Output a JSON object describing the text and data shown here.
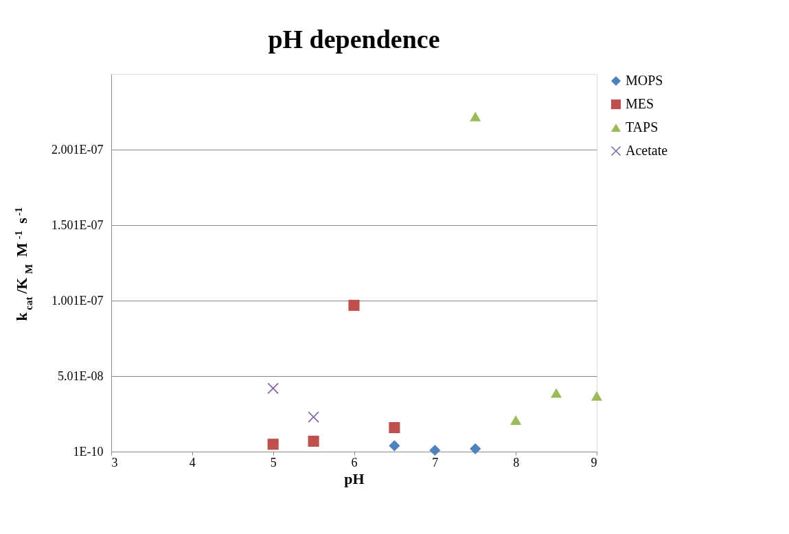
{
  "chart_data": {
    "type": "scatter",
    "title": "pH dependence",
    "xlabel": "pH",
    "ylabel": "k$_{cat}$/K$_{M}$ M$^{-1}$ s$^{-1}$",
    "xlim": [
      3,
      9
    ],
    "xticks": [
      3,
      4,
      5,
      6,
      7,
      8,
      9
    ],
    "ylim": [
      1e-10,
      2.501e-07
    ],
    "yticks": [
      {
        "value": 1e-10,
        "label": "1E-10"
      },
      {
        "value": 5.01e-08,
        "label": "5.01E-08"
      },
      {
        "value": 1.001e-07,
        "label": "1.001E-07"
      },
      {
        "value": 1.501e-07,
        "label": "1.501E-07"
      },
      {
        "value": 2.001e-07,
        "label": "2.001E-07"
      }
    ],
    "grid": "y",
    "legend": "right",
    "series": [
      {
        "name": "MOPS",
        "color": "#4f81bd",
        "marker": "diamond",
        "x": [
          6.5,
          7,
          7.5
        ],
        "values": [
          4e-09,
          1e-09,
          2e-09
        ]
      },
      {
        "name": "MES",
        "color": "#c0504d",
        "marker": "square",
        "x": [
          5,
          5.5,
          6,
          6.5
        ],
        "values": [
          5e-09,
          7e-09,
          9.7e-08,
          1.6e-08
        ]
      },
      {
        "name": "TAPS",
        "color": "#9bbb59",
        "marker": "triangle",
        "x": [
          7.5,
          8,
          8.5,
          9
        ],
        "values": [
          2.22e-07,
          2.1e-08,
          3.9e-08,
          3.7e-08
        ]
      },
      {
        "name": "Acetate",
        "color": "#8064a2",
        "marker": "cross",
        "x": [
          5,
          5.5
        ],
        "values": [
          4.2e-08,
          2.3e-08
        ]
      }
    ]
  }
}
